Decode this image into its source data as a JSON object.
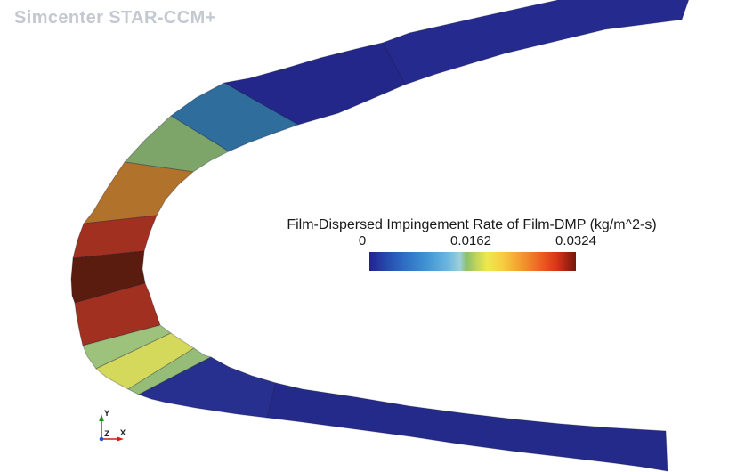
{
  "app": {
    "watermark_text": "Simcenter STAR-CCM+",
    "watermark_color": "#c3c8d1"
  },
  "scene": {
    "background_color": "#ffffff",
    "description": "wing leading-edge surface band colored by impingement rate",
    "facets": [
      {
        "name": "upper-tail-far",
        "color": "#252a8e",
        "approx_value": 0.0005
      },
      {
        "name": "upper-tail-near",
        "color": "#23278a",
        "approx_value": 0.001
      },
      {
        "name": "upper-steel-blue",
        "color": "#2e6d9c",
        "approx_value": 0.006
      },
      {
        "name": "upper-sage-green",
        "color": "#7da569",
        "approx_value": 0.014
      },
      {
        "name": "upper-orange",
        "color": "#b1722c",
        "approx_value": 0.021
      },
      {
        "name": "upper-brick-red",
        "color": "#a23020",
        "approx_value": 0.027
      },
      {
        "name": "stagnation-maroon",
        "color": "#5a1c0e",
        "approx_value": 0.0324
      },
      {
        "name": "lower-brick-red",
        "color": "#a23020",
        "approx_value": 0.027
      },
      {
        "name": "lower-light-green",
        "color": "#9cc27c",
        "approx_value": 0.015
      },
      {
        "name": "lower-yellow",
        "color": "#d4d95c",
        "approx_value": 0.018
      },
      {
        "name": "lower-light-green-2",
        "color": "#96bd78",
        "approx_value": 0.015
      },
      {
        "name": "lower-tail-near",
        "color": "#28308f",
        "approx_value": 0.001
      },
      {
        "name": "lower-tail-far",
        "color": "#242a8a",
        "approx_value": 0.0005
      }
    ]
  },
  "legend": {
    "title": "Film-Dispersed Impingement Rate of Film-DMP (kg/m^2-s)",
    "ticks": [
      "0",
      "0.0162",
      "0.0324"
    ],
    "text_color": "#1a1a1a",
    "gradient_stops": [
      [
        0.0,
        "#232390"
      ],
      [
        0.08,
        "#2648ae"
      ],
      [
        0.17,
        "#2e6ec6"
      ],
      [
        0.28,
        "#4095d4"
      ],
      [
        0.38,
        "#6cb7e0"
      ],
      [
        0.44,
        "#9ed0d8"
      ],
      [
        0.47,
        "#8cc06a"
      ],
      [
        0.52,
        "#c2d65a"
      ],
      [
        0.57,
        "#eee84e"
      ],
      [
        0.64,
        "#f6cf44"
      ],
      [
        0.71,
        "#f5a835"
      ],
      [
        0.78,
        "#f08028"
      ],
      [
        0.85,
        "#e9541e"
      ],
      [
        0.91,
        "#d63418"
      ],
      [
        0.96,
        "#a02212"
      ],
      [
        1.0,
        "#76190f"
      ]
    ]
  },
  "axis_triad": {
    "x_label": "X",
    "y_label": "Y",
    "z_label": "Z",
    "x_color": "#cc2211",
    "y_color": "#119911",
    "z_color": "#2255cc"
  },
  "chart_data": {
    "type": "heatmap",
    "title": "Film-Dispersed Impingement Rate of Film-DMP (kg/m^2-s)",
    "variable": "Film-Dispersed Impingement Rate of Film-DMP",
    "unit": "kg/m^2-s",
    "colorbar": {
      "min": 0,
      "mid": 0.0162,
      "max": 0.0324,
      "orientation": "horizontal",
      "style": "blue-to-dark-red rainbow"
    },
    "surface_regions": [
      {
        "region": "upper tail (far)",
        "approx_value": 0.0005
      },
      {
        "region": "upper tail (near bend)",
        "approx_value": 0.001
      },
      {
        "region": "upper bend (steel blue)",
        "approx_value": 0.006
      },
      {
        "region": "upper leading edge (sage)",
        "approx_value": 0.014
      },
      {
        "region": "upper leading edge (orange)",
        "approx_value": 0.021
      },
      {
        "region": "upper stagnation flank (red)",
        "approx_value": 0.027
      },
      {
        "region": "stagnation zone (dark red)",
        "approx_value": 0.0324
      },
      {
        "region": "lower stagnation flank (red)",
        "approx_value": 0.027
      },
      {
        "region": "lower edge (light green)",
        "approx_value": 0.015
      },
      {
        "region": "lower edge (yellow)",
        "approx_value": 0.018
      },
      {
        "region": "lower bend (light green)",
        "approx_value": 0.015
      },
      {
        "region": "lower tail (near bend)",
        "approx_value": 0.001
      },
      {
        "region": "lower tail (far)",
        "approx_value": 0.0005
      }
    ]
  }
}
